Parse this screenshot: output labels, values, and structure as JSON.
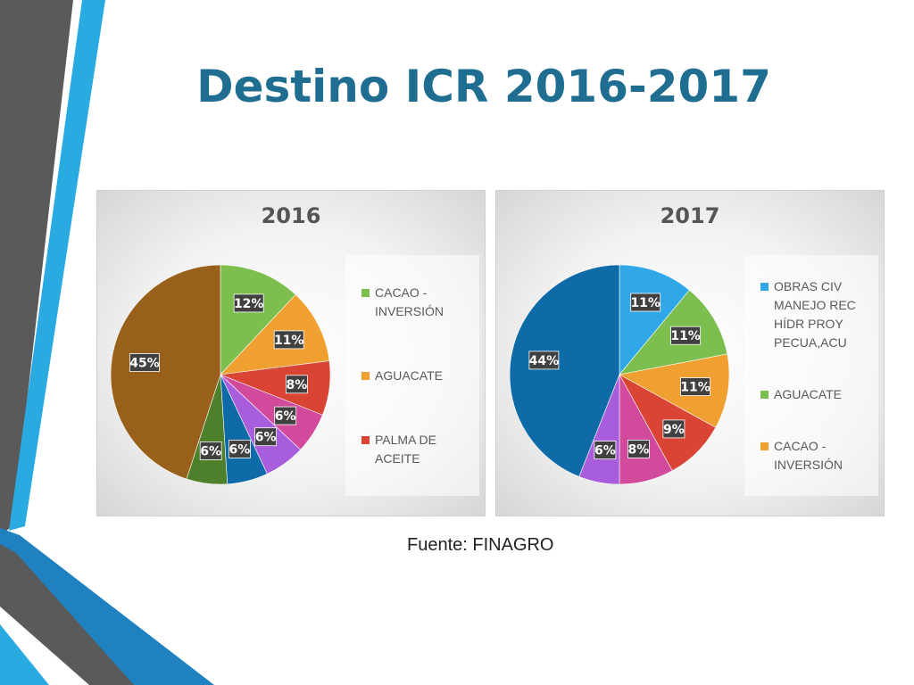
{
  "slide": {
    "title": "Destino ICR 2016-2017",
    "source": "Fuente: FINAGRO",
    "accent_colors": [
      "#29abe2",
      "#1f81c0",
      "#5a5a5a",
      "#1f6e92"
    ]
  },
  "chart_data": [
    {
      "type": "pie",
      "title": "2016",
      "legend_position": "right",
      "slices": [
        {
          "label": "CACAO - INVERSIÓN",
          "value": 12,
          "display": "12%",
          "color": "#7cbf4e"
        },
        {
          "label": "AGUACATE",
          "value": 11,
          "display": "11%",
          "color": "#f0a030"
        },
        {
          "label": "PALMA DE ACEITE",
          "value": 8,
          "display": "8%",
          "color": "#d94434"
        },
        {
          "label": "",
          "value": 6,
          "display": "6%",
          "color": "#d14a9c"
        },
        {
          "label": "",
          "value": 6,
          "display": "6%",
          "color": "#a85ddc"
        },
        {
          "label": "",
          "value": 6,
          "display": "6%",
          "color": "#0f6ba8"
        },
        {
          "label": "",
          "value": 6,
          "display": "6%",
          "color": "#4e7f2a"
        },
        {
          "label": "",
          "value": 45,
          "display": "45%",
          "color": "#98601a"
        }
      ]
    },
    {
      "type": "pie",
      "title": "2017",
      "legend_position": "right",
      "slices": [
        {
          "label": "OBRAS CIV MANEJO REC HÍDR PROY PECUA,ACU",
          "value": 11,
          "display": "11%",
          "color": "#30a8e8"
        },
        {
          "label": "AGUACATE",
          "value": 11,
          "display": "11%",
          "color": "#7cbf4e"
        },
        {
          "label": "CACAO - INVERSIÓN",
          "value": 11,
          "display": "11%",
          "color": "#f0a030"
        },
        {
          "label": "",
          "value": 9,
          "display": "9%",
          "color": "#d94434"
        },
        {
          "label": "",
          "value": 8,
          "display": "8%",
          "color": "#d14a9c"
        },
        {
          "label": "",
          "value": 6,
          "display": "6%",
          "color": "#a85ddc"
        },
        {
          "label": "",
          "value": 44,
          "display": "44%",
          "color": "#0f6ba8"
        }
      ]
    }
  ]
}
